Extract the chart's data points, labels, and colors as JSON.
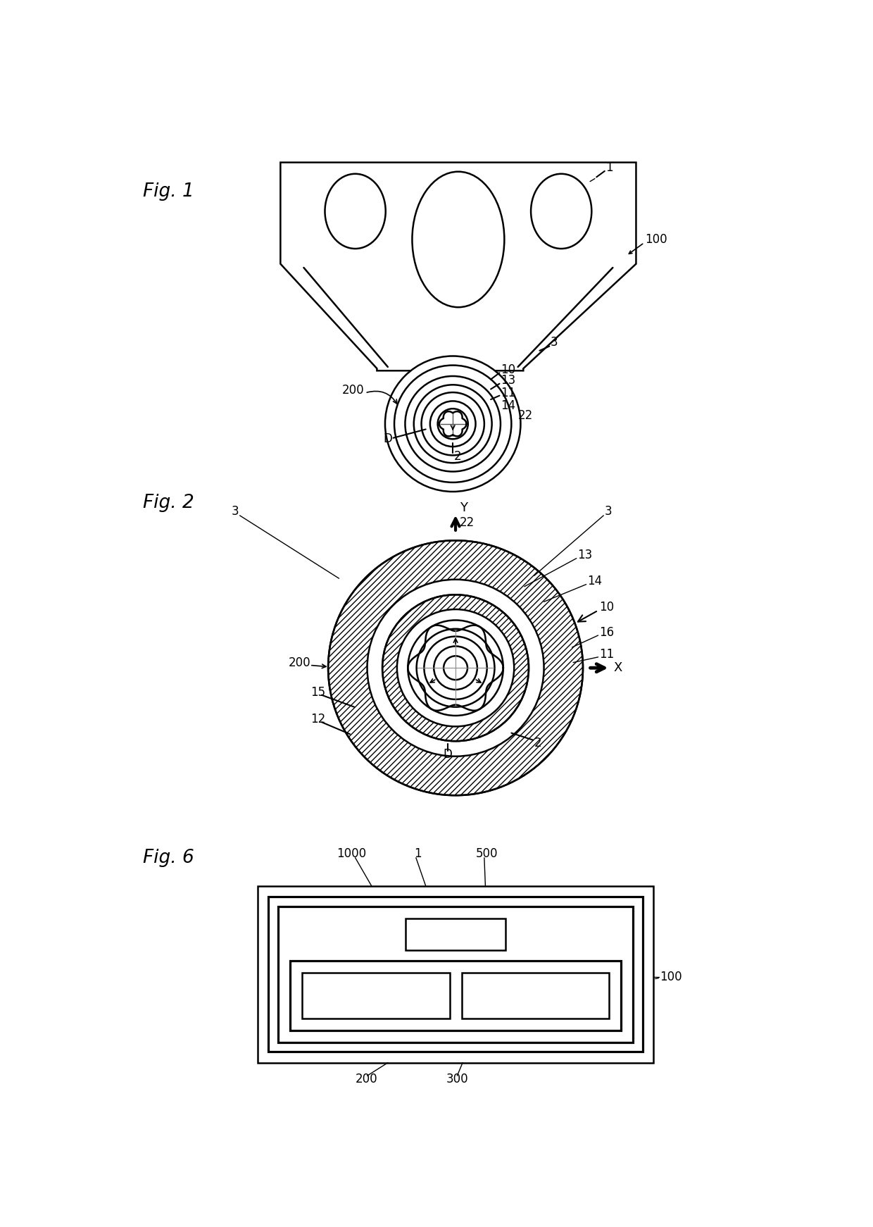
{
  "bg_color": "#ffffff",
  "fig_width": 12.4,
  "fig_height": 17.42,
  "fig1_label": "Fig. 1",
  "fig2_label": "Fig. 2",
  "fig6_label": "Fig. 6"
}
